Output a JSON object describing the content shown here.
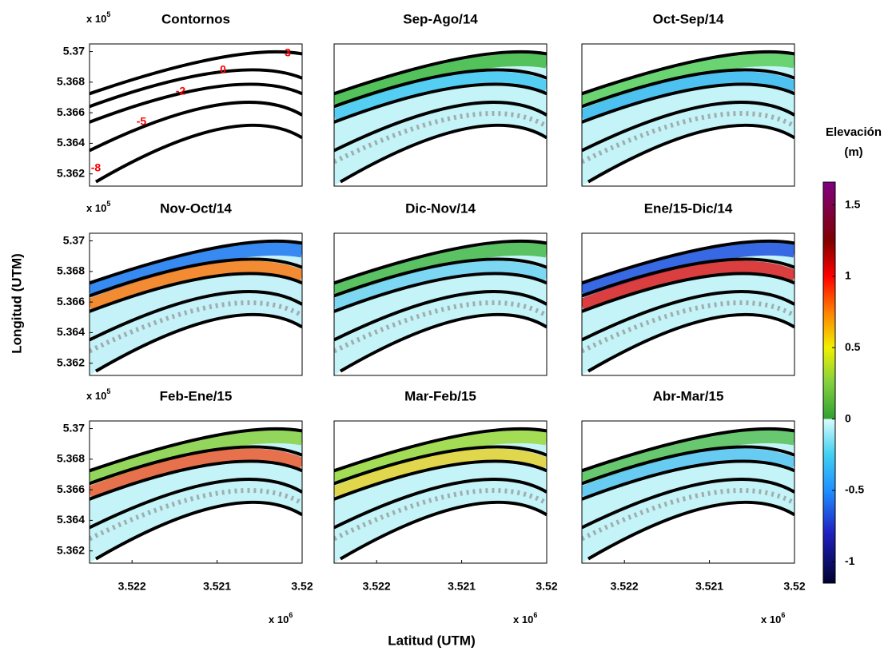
{
  "figure": {
    "ylabel": "Longitud (UTM)",
    "xlabel": "Latitud (UTM)"
  },
  "chart_data": [
    {
      "type": "contour",
      "title": "Contornos",
      "xlim": [
        3.5225,
        3.52
      ],
      "ylim": [
        5.3612,
        5.3705
      ],
      "yticks": [
        5.362,
        5.364,
        5.366,
        5.368,
        5.37
      ],
      "y_offset_text": {
        "base": "x 10",
        "exponent": "5"
      },
      "contour_levels": [
        3,
        0,
        -2,
        -5,
        -8
      ],
      "contour_label_color": "#ff0000",
      "field_colors": []
    },
    {
      "type": "contour",
      "title": "Sep-Ago/14",
      "xlim": [
        3.5225,
        3.52
      ],
      "ylim": [
        5.3612,
        5.3705
      ],
      "field_colors": [
        "#c4f4f8",
        "#40b840",
        "#38c4f0"
      ]
    },
    {
      "type": "contour",
      "title": "Oct-Sep/14",
      "xlim": [
        3.5225,
        3.52
      ],
      "ylim": [
        5.3612,
        5.3705
      ],
      "field_colors": [
        "#c4f4f8",
        "#5ace5a",
        "#30b4ec"
      ]
    },
    {
      "type": "contour",
      "title": "Nov-Oct/14",
      "xlim": [
        3.5225,
        3.52
      ],
      "ylim": [
        5.3612,
        5.3705
      ],
      "yticks": [
        5.362,
        5.364,
        5.366,
        5.368,
        5.37
      ],
      "y_offset_text": {
        "base": "x 10",
        "exponent": "5"
      },
      "field_colors": [
        "#c4f2f8",
        "#1e78f0",
        "#ff7000"
      ]
    },
    {
      "type": "contour",
      "title": "Dic-Nov/14",
      "xlim": [
        3.5225,
        3.52
      ],
      "ylim": [
        5.3612,
        5.3705
      ],
      "field_colors": [
        "#c4f4f8",
        "#48b848",
        "#6ad0f0"
      ]
    },
    {
      "type": "contour",
      "title": "Ene/15-Dic/14",
      "xlim": [
        3.5225,
        3.52
      ],
      "ylim": [
        5.3612,
        5.3705
      ],
      "field_colors": [
        "#c4f4f8",
        "#2050e0",
        "#e01010"
      ]
    },
    {
      "type": "contour",
      "title": "Feb-Ene/15",
      "xlim": [
        3.5225,
        3.52
      ],
      "ylim": [
        5.3612,
        5.3705
      ],
      "yticks": [
        5.362,
        5.364,
        5.366,
        5.368,
        5.37
      ],
      "y_offset_text": {
        "base": "x 10",
        "exponent": "5"
      },
      "xticks": [
        3.522,
        3.521,
        3.52
      ],
      "x_offset_text": {
        "base": "x 10",
        "exponent": "6"
      },
      "field_colors": [
        "#c4f4f8",
        "#8ad040",
        "#f05020"
      ]
    },
    {
      "type": "contour",
      "title": "Mar-Feb/15",
      "xlim": [
        3.5225,
        3.52
      ],
      "ylim": [
        5.3612,
        5.3705
      ],
      "xticks": [
        3.522,
        3.521,
        3.52
      ],
      "x_offset_text": {
        "base": "x 10",
        "exponent": "6"
      },
      "field_colors": [
        "#c4f4f8",
        "#9cd838",
        "#e8d020"
      ]
    },
    {
      "type": "contour",
      "title": "Abr-Mar/15",
      "xlim": [
        3.5225,
        3.52
      ],
      "ylim": [
        5.3612,
        5.3705
      ],
      "xticks": [
        3.522,
        3.521,
        3.52
      ],
      "x_offset_text": {
        "base": "x 10",
        "exponent": "6"
      },
      "field_colors": [
        "#c4f4f8",
        "#58c058",
        "#50c0f0"
      ]
    },
    {
      "type": "colorbar",
      "title": [
        "Elevación",
        "(m)"
      ],
      "ylim": [
        -1.15,
        1.66
      ],
      "yticks": [
        -1,
        -0.5,
        0,
        0.5,
        1,
        1.5
      ],
      "colormap": [
        {
          "value": -1.15,
          "color": "#000030"
        },
        {
          "value": -0.8,
          "color": "#2020c0"
        },
        {
          "value": -0.5,
          "color": "#1e90ff"
        },
        {
          "value": -0.25,
          "color": "#40d0f0"
        },
        {
          "value": 0,
          "color": "#d8fcfc"
        },
        {
          "value": 0.001,
          "color": "#30a030"
        },
        {
          "value": 0.25,
          "color": "#80d040"
        },
        {
          "value": 0.5,
          "color": "#f0f000"
        },
        {
          "value": 0.75,
          "color": "#ff8000"
        },
        {
          "value": 1.0,
          "color": "#ff0000"
        },
        {
          "value": 1.25,
          "color": "#800000"
        },
        {
          "value": 1.66,
          "color": "#800080"
        }
      ]
    }
  ]
}
